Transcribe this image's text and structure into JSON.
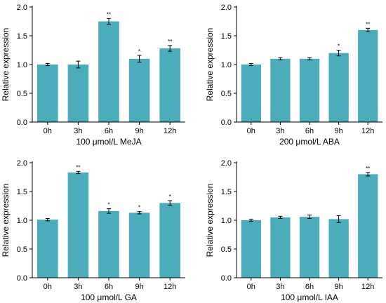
{
  "colors": {
    "bar": "#4bacbb",
    "axis": "#000000"
  },
  "chart_data": [
    {
      "type": "bar",
      "categories": [
        "0h",
        "3h",
        "6h",
        "9h",
        "12h"
      ],
      "values": [
        1.0,
        1.0,
        1.75,
        1.1,
        1.28
      ],
      "errors": [
        0.02,
        0.06,
        0.05,
        0.06,
        0.05
      ],
      "significance": [
        "",
        "",
        "**",
        "*",
        "**"
      ],
      "xlabel": "100 μmol/L MeJA",
      "ylabel": "Relative expression",
      "ylim": [
        0,
        2.0
      ],
      "yticks": [
        "0.0",
        "0.5",
        "1.0",
        "1.5",
        "2.0"
      ]
    },
    {
      "type": "bar",
      "categories": [
        "0h",
        "3h",
        "6h",
        "9h",
        "12h"
      ],
      "values": [
        1.0,
        1.1,
        1.1,
        1.2,
        1.6
      ],
      "errors": [
        0.02,
        0.02,
        0.02,
        0.05,
        0.03
      ],
      "significance": [
        "",
        "",
        "",
        "*",
        "**"
      ],
      "xlabel": "200 μmol/L ABA",
      "ylabel": "Relative expression",
      "ylim": [
        0,
        2.0
      ],
      "yticks": [
        "0.0",
        "0.5",
        "1.0",
        "1.5",
        "2.0"
      ]
    },
    {
      "type": "bar",
      "categories": [
        "0h",
        "3h",
        "6h",
        "9h",
        "12h"
      ],
      "values": [
        1.01,
        1.83,
        1.16,
        1.13,
        1.3
      ],
      "errors": [
        0.02,
        0.02,
        0.04,
        0.02,
        0.04
      ],
      "significance": [
        "",
        "**",
        "*",
        "*",
        "*"
      ],
      "xlabel": "100 μmol/L GA",
      "ylabel": "Relative expression",
      "ylim": [
        0,
        2.0
      ],
      "yticks": [
        "0.0",
        "0.5",
        "1.0",
        "1.5",
        "2.0"
      ]
    },
    {
      "type": "bar",
      "categories": [
        "0h",
        "3h",
        "6h",
        "9h",
        "12h"
      ],
      "values": [
        1.0,
        1.05,
        1.06,
        1.02,
        1.8
      ],
      "errors": [
        0.02,
        0.02,
        0.03,
        0.06,
        0.03
      ],
      "significance": [
        "",
        "",
        "",
        "",
        "**"
      ],
      "xlabel": "100 μmol/L IAA",
      "ylabel": "Relative expression",
      "ylim": [
        0,
        2.0
      ],
      "yticks": [
        "0.0",
        "0.5",
        "1.0",
        "1.5",
        "2.0"
      ]
    }
  ]
}
